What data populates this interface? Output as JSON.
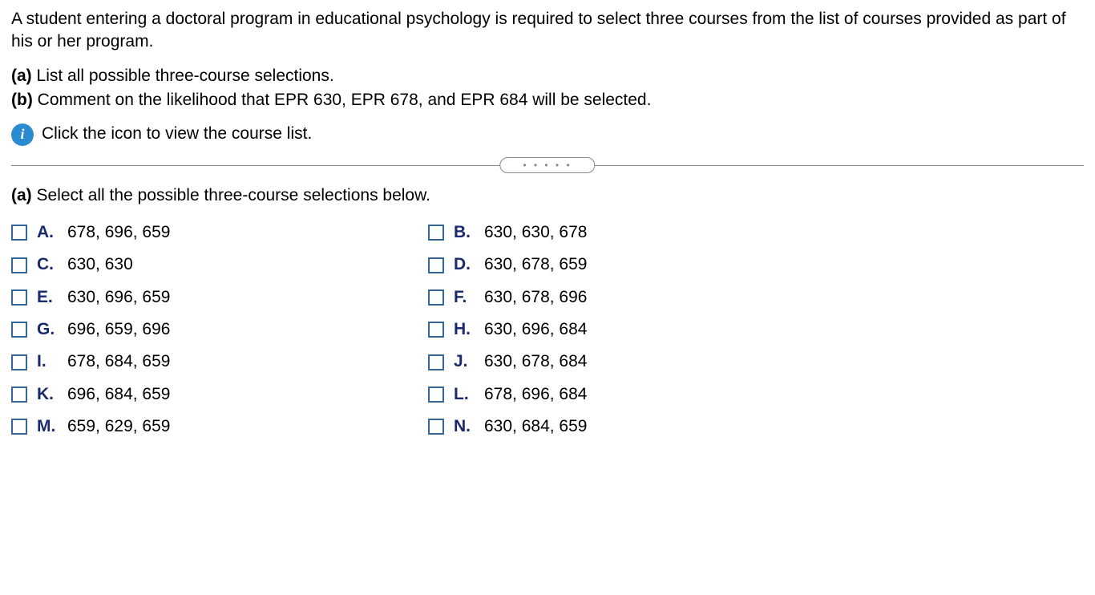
{
  "intro": "A student entering a doctoral program in educational psychology is required to select three courses from the list of courses provided as part of his or her program.",
  "parts": {
    "a": {
      "label": "(a)",
      "text": "List all possible three-course selections."
    },
    "b": {
      "label": "(b)",
      "text": "Comment on the likelihood that EPR 630, EPR 678, and EPR 684 will be selected."
    }
  },
  "info": {
    "icon_glyph": "i",
    "text": "Click the icon to view the course list."
  },
  "divider_dots": "• • • • •",
  "instruction": {
    "label": "(a)",
    "text": "Select all the possible three-course selections below."
  },
  "options": {
    "A": {
      "letter": "A.",
      "text": "678, 696, 659"
    },
    "B": {
      "letter": "B.",
      "text": "630, 630, 678"
    },
    "C": {
      "letter": "C.",
      "text": "630, 630"
    },
    "D": {
      "letter": "D.",
      "text": "630, 678, 659"
    },
    "E": {
      "letter": "E.",
      "text": "630, 696, 659"
    },
    "F": {
      "letter": "F.",
      "text": "630, 678, 696"
    },
    "G": {
      "letter": "G.",
      "text": "696, 659, 696"
    },
    "H": {
      "letter": "H.",
      "text": "630, 696, 684"
    },
    "I": {
      "letter": "I.",
      "text": "678, 684, 659"
    },
    "J": {
      "letter": "J.",
      "text": "630, 678, 684"
    },
    "K": {
      "letter": "K.",
      "text": "696, 684, 659"
    },
    "L": {
      "letter": "L.",
      "text": "678, 696, 684"
    },
    "M": {
      "letter": "M.",
      "text": "659, 629, 659"
    },
    "N": {
      "letter": "N.",
      "text": "630, 684, 659"
    }
  },
  "colors": {
    "option_letter": "#1a2a6c",
    "checkbox_border": "#336699",
    "info_icon_bg": "#2a8bd0",
    "divider": "#888888"
  }
}
